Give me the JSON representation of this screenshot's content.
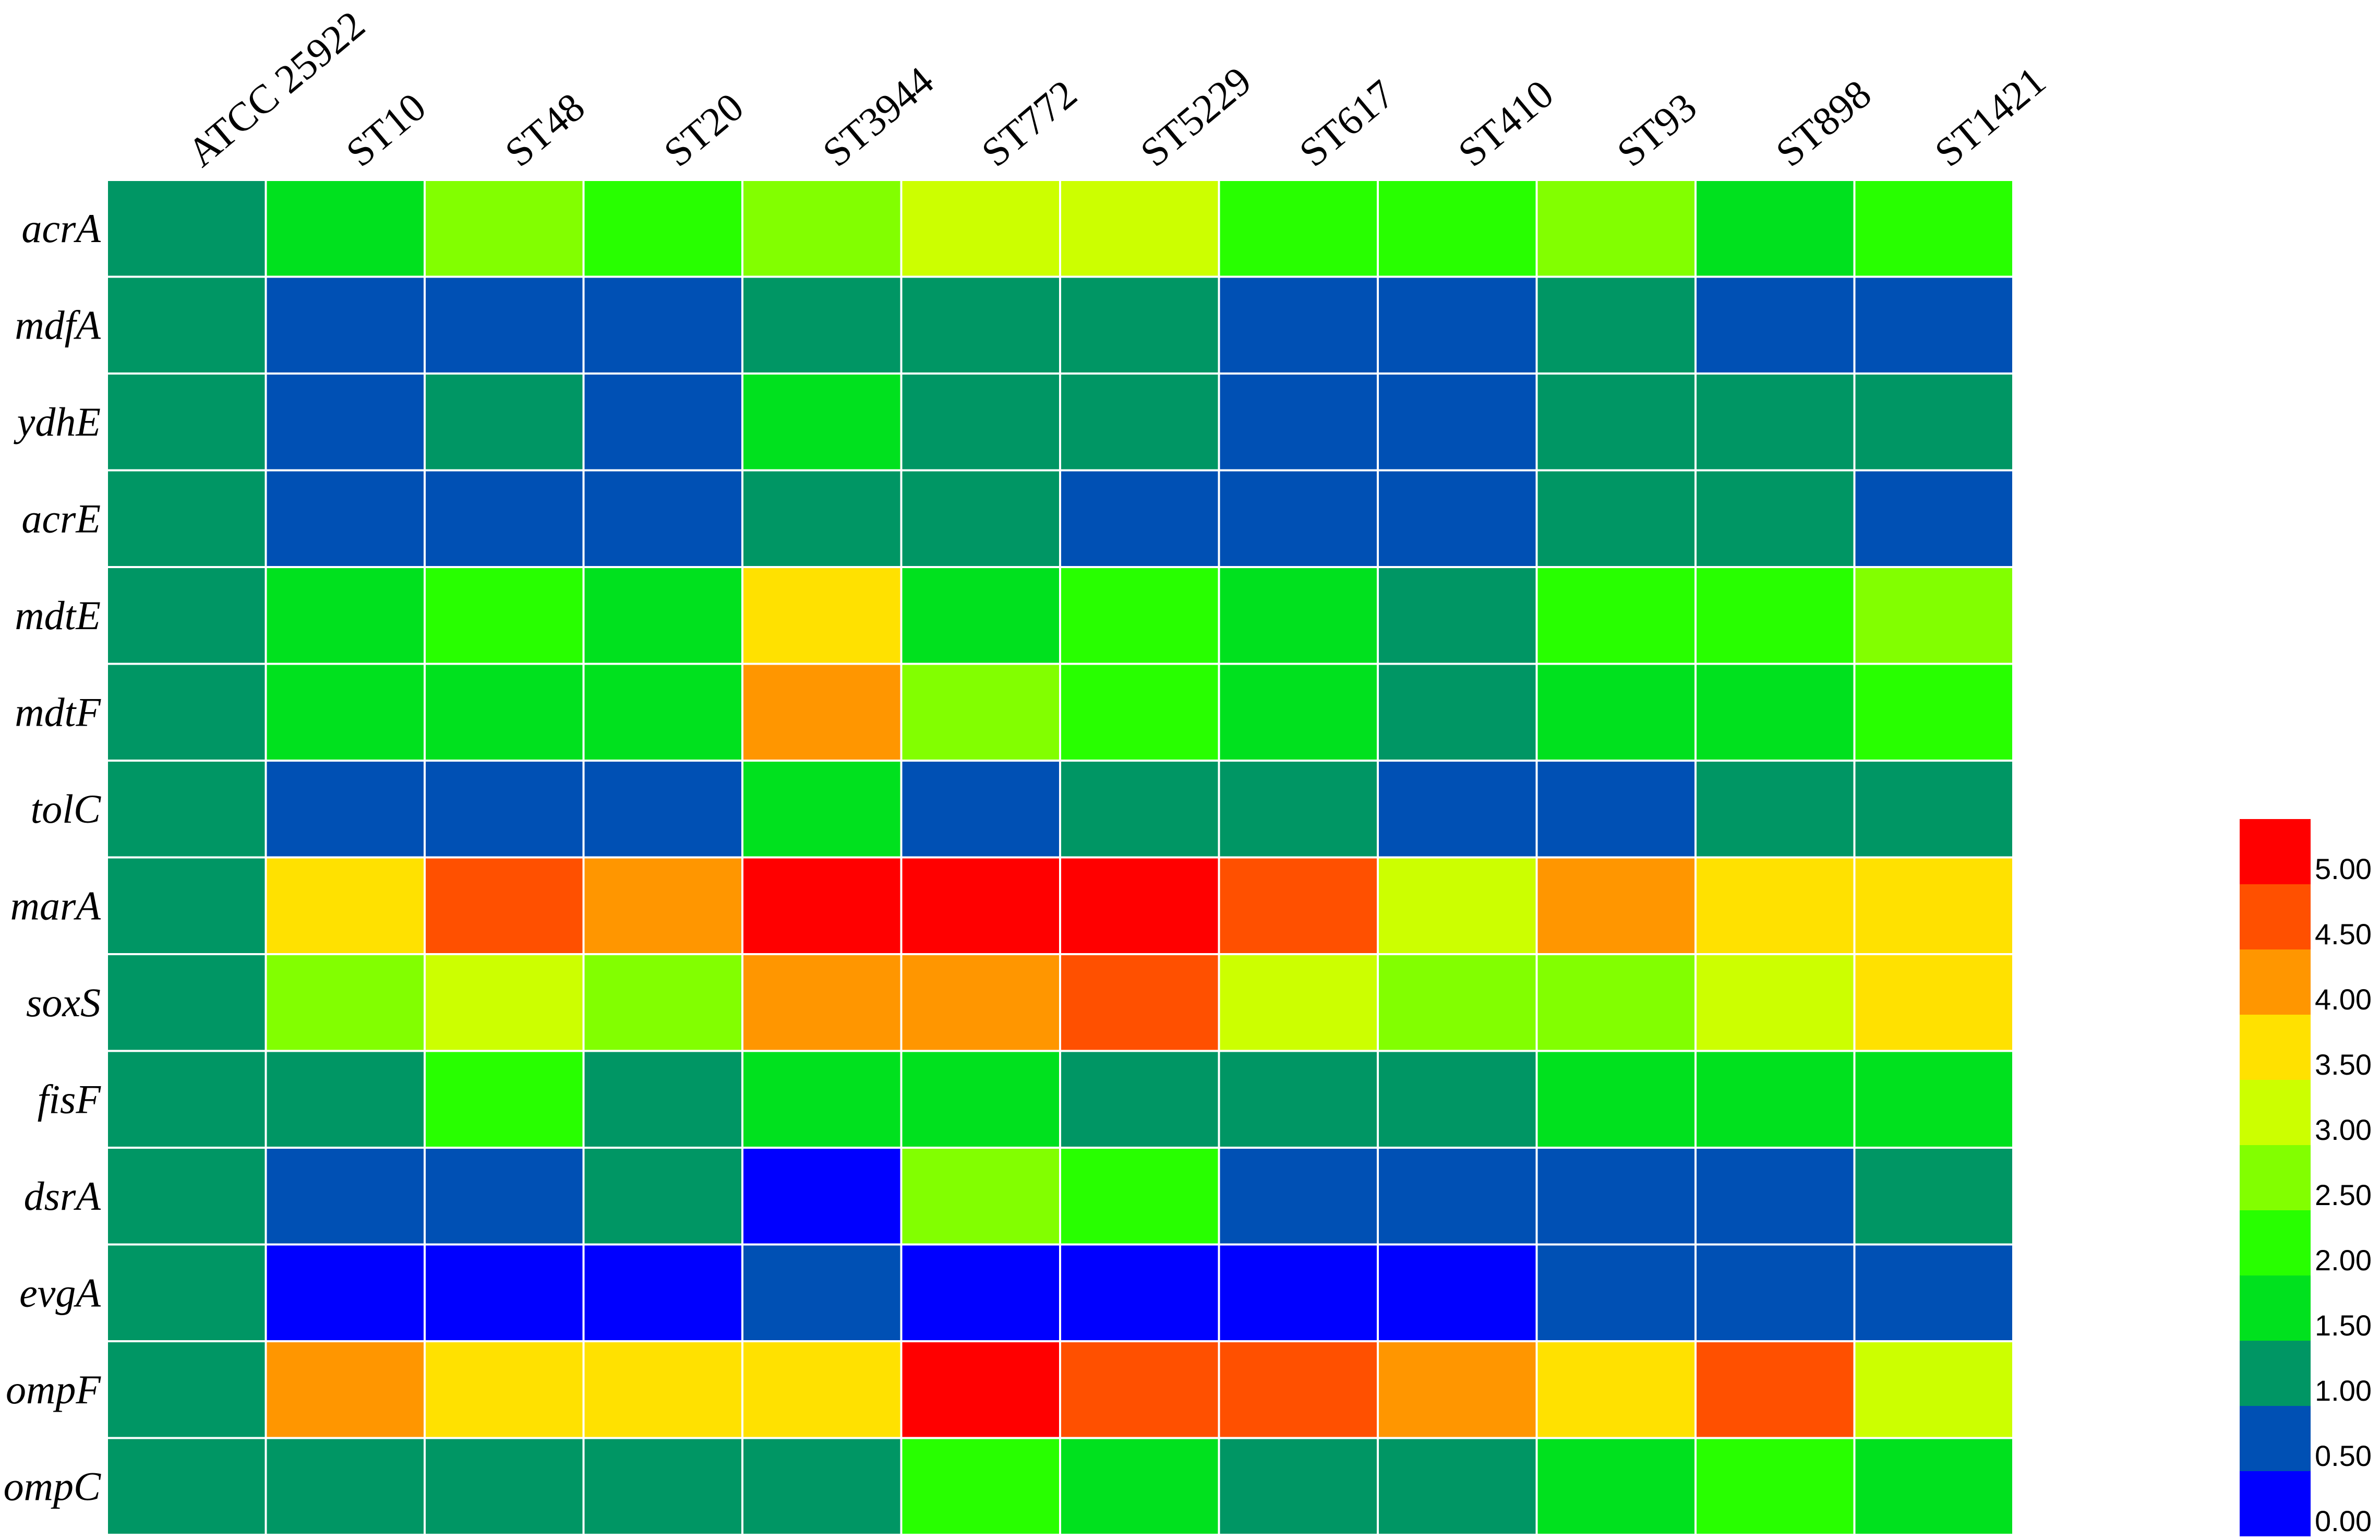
{
  "chart_data": {
    "type": "heatmap",
    "columns": [
      "ATCC 25922",
      "ST10",
      "ST48",
      "ST20",
      "ST3944",
      "ST772",
      "ST5229",
      "ST617",
      "ST410",
      "ST93",
      "ST898",
      "ST1421"
    ],
    "rows": [
      "acrA",
      "mdfA",
      "ydhE",
      "acrE",
      "mdtE",
      "mdtF",
      "tolC",
      "marA",
      "soxS",
      "fisF",
      "dsrA",
      "evgA",
      "ompF",
      "ompC"
    ],
    "values": [
      [
        1.25,
        1.75,
        2.75,
        2.25,
        2.75,
        3.25,
        3.25,
        2.25,
        2.25,
        2.75,
        1.75,
        2.25
      ],
      [
        1.25,
        0.75,
        0.75,
        0.75,
        1.25,
        1.25,
        1.25,
        0.75,
        0.75,
        1.25,
        0.75,
        0.75
      ],
      [
        1.25,
        0.75,
        1.25,
        0.75,
        1.75,
        1.25,
        1.25,
        0.75,
        0.75,
        1.25,
        1.25,
        1.25
      ],
      [
        1.25,
        0.75,
        0.75,
        0.75,
        1.25,
        1.25,
        0.75,
        0.75,
        0.75,
        1.25,
        1.25,
        0.75
      ],
      [
        1.25,
        1.75,
        2.25,
        1.75,
        3.75,
        1.75,
        2.25,
        1.75,
        1.25,
        2.25,
        2.25,
        2.75
      ],
      [
        1.25,
        1.75,
        1.75,
        1.75,
        4.25,
        2.75,
        2.25,
        1.75,
        1.25,
        1.75,
        1.75,
        2.25
      ],
      [
        1.25,
        0.75,
        0.75,
        0.75,
        1.75,
        0.75,
        1.25,
        1.25,
        0.75,
        0.75,
        1.25,
        1.25
      ],
      [
        1.25,
        3.75,
        4.75,
        4.25,
        5.25,
        5.25,
        5.25,
        4.75,
        3.25,
        4.25,
        3.75,
        3.75
      ],
      [
        1.25,
        2.75,
        3.25,
        2.75,
        4.25,
        4.25,
        4.75,
        3.25,
        2.75,
        2.75,
        3.25,
        3.75
      ],
      [
        1.25,
        1.25,
        2.25,
        1.25,
        1.75,
        1.75,
        1.25,
        1.25,
        1.25,
        1.75,
        1.75,
        1.75
      ],
      [
        1.25,
        0.75,
        0.75,
        1.25,
        0.25,
        2.75,
        2.25,
        0.75,
        0.75,
        0.75,
        0.75,
        1.25
      ],
      [
        1.25,
        0.25,
        0.25,
        0.25,
        0.75,
        0.25,
        0.25,
        0.25,
        0.25,
        0.75,
        0.75,
        0.75
      ],
      [
        1.25,
        4.25,
        3.75,
        3.75,
        3.75,
        5.25,
        4.75,
        4.75,
        4.25,
        3.75,
        4.75,
        3.25
      ],
      [
        1.25,
        1.25,
        1.25,
        1.25,
        1.25,
        2.25,
        1.75,
        1.25,
        1.25,
        1.75,
        2.25,
        1.75
      ]
    ],
    "color_scale": {
      "bins": [
        {
          "min": 0.0,
          "max": 0.5,
          "color": "#0000ff"
        },
        {
          "min": 0.5,
          "max": 1.0,
          "color": "#0050b4"
        },
        {
          "min": 1.0,
          "max": 1.5,
          "color": "#009664"
        },
        {
          "min": 1.5,
          "max": 2.0,
          "color": "#00e11e"
        },
        {
          "min": 2.0,
          "max": 2.5,
          "color": "#28ff00"
        },
        {
          "min": 2.5,
          "max": 3.0,
          "color": "#82ff00"
        },
        {
          "min": 3.0,
          "max": 3.5,
          "color": "#ccff00"
        },
        {
          "min": 3.5,
          "max": 4.0,
          "color": "#ffe100"
        },
        {
          "min": 4.0,
          "max": 4.5,
          "color": "#ff9600"
        },
        {
          "min": 4.5,
          "max": 5.0,
          "color": "#ff5000"
        },
        {
          "min": 5.0,
          "max": 5.5,
          "color": "#ff0000"
        }
      ],
      "tick_labels": [
        "0.00",
        "0.50",
        "1.00",
        "1.50",
        "2.00",
        "2.50",
        "3.00",
        "3.50",
        "4.00",
        "4.50",
        "5.00"
      ]
    },
    "legend_position": "right",
    "grid": true
  }
}
